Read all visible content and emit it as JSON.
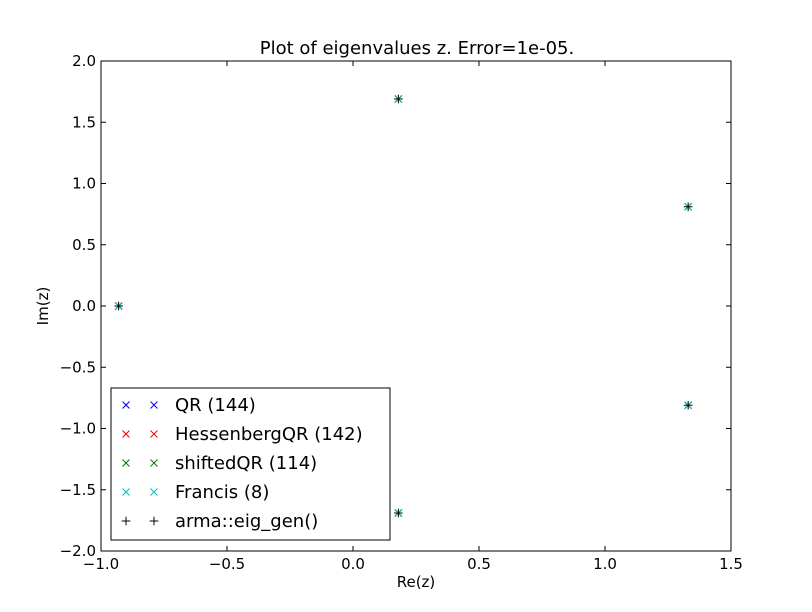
{
  "chart_data": {
    "type": "scatter",
    "title": "Plot of eigenvalues z. Error=1e-05.",
    "xlabel": "Re(z)",
    "ylabel": "Im(z)",
    "xlim": [
      -1.0,
      1.5
    ],
    "ylim": [
      -2.0,
      2.0
    ],
    "xticks": [
      -1.0,
      -0.5,
      0.0,
      0.5,
      1.0,
      1.5
    ],
    "yticks": [
      -2.0,
      -1.5,
      -1.0,
      -0.5,
      0.0,
      0.5,
      1.0,
      1.5,
      2.0
    ],
    "xtick_labels": [
      "−1.0",
      "−0.5",
      "0.0",
      "0.5",
      "1.0",
      "1.5"
    ],
    "ytick_labels": [
      "−2.0",
      "−1.5",
      "−1.0",
      "−0.5",
      "0.0",
      "0.5",
      "1.0",
      "1.5",
      "2.0"
    ],
    "grid": false,
    "legend_position": "lower-left",
    "series": [
      {
        "name": "QR (144)",
        "marker": "x",
        "color": "#0000ff",
        "x": [
          -0.93,
          0.18,
          0.18,
          1.33,
          1.33
        ],
        "y": [
          0.0,
          1.69,
          -1.69,
          0.81,
          -0.81
        ]
      },
      {
        "name": "HessenbergQR (142)",
        "marker": "x",
        "color": "#ff0000",
        "x": [
          -0.93,
          0.18,
          0.18,
          1.33,
          1.33
        ],
        "y": [
          0.0,
          1.69,
          -1.69,
          0.81,
          -0.81
        ]
      },
      {
        "name": "shiftedQR (114)",
        "marker": "x",
        "color": "#008000",
        "x": [
          -0.93,
          0.18,
          0.18,
          1.33,
          1.33
        ],
        "y": [
          0.0,
          1.69,
          -1.69,
          0.81,
          -0.81
        ]
      },
      {
        "name": "Francis (8)",
        "marker": "x",
        "color": "#00bfbf",
        "x": [
          -0.93,
          0.18,
          0.18,
          1.33,
          1.33
        ],
        "y": [
          0.0,
          1.69,
          -1.69,
          0.81,
          -0.81
        ]
      },
      {
        "name": "arma::eig_gen()",
        "marker": "+",
        "color": "#000000",
        "x": [
          -0.93,
          0.18,
          0.18,
          1.33,
          1.33
        ],
        "y": [
          0.0,
          1.69,
          -1.69,
          0.81,
          -0.81
        ]
      }
    ]
  }
}
